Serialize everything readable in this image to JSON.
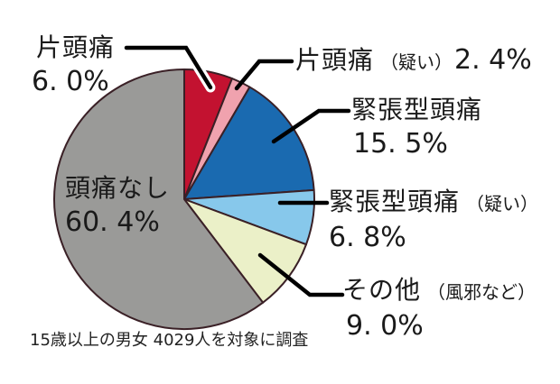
{
  "chart_data": {
    "type": "pie",
    "title": "",
    "direction": "clockwise",
    "start_angle_deg": 0,
    "outline_color": "#3a2026",
    "legend_position": "none",
    "slices": [
      {
        "id": "migraine",
        "label": "片頭痛",
        "suffix": "",
        "value": 6.0,
        "display": "6. 0%",
        "color": "#c31230"
      },
      {
        "id": "migraine-suspected",
        "label": "片頭痛",
        "suffix": "（疑い）",
        "value": 2.4,
        "display": "2. 4%",
        "color": "#f0a2ae"
      },
      {
        "id": "tension",
        "label": "緊張型頭痛",
        "suffix": "",
        "value": 15.5,
        "display": "15. 5%",
        "color": "#1a6ab0"
      },
      {
        "id": "tension-suspected",
        "label": "緊張型頭痛",
        "suffix": "（疑い）",
        "value": 6.8,
        "display": "6. 8%",
        "color": "#87c8eb"
      },
      {
        "id": "other",
        "label": "その他",
        "suffix": "（風邪など）",
        "value": 9.0,
        "display": "9. 0%",
        "color": "#ebf0c8"
      },
      {
        "id": "none",
        "label": "頭痛なし",
        "suffix": "",
        "value": 60.4,
        "display": "60. 4%",
        "color": "#9a9a98"
      }
    ],
    "footnote": "15歳以上の男女 4029人を対象に調査"
  }
}
